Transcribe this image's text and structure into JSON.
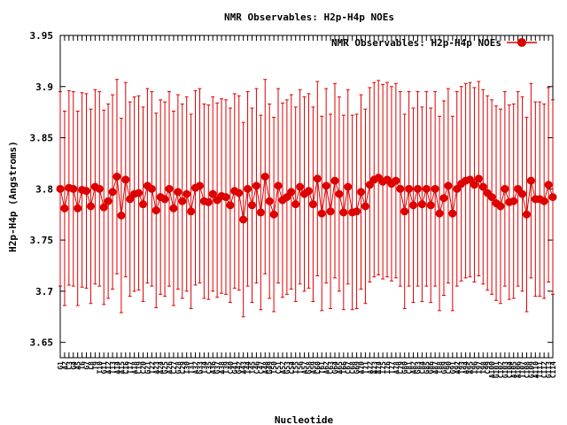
{
  "chart_data": {
    "type": "line",
    "title": "NMR Observables: H2p-H4p NOEs",
    "xlabel": "Nucleotide",
    "ylabel": "H2p-H4p (Angstroms)",
    "ylim": [
      3.635,
      3.95
    ],
    "yticks": [
      "3.65",
      "3.7",
      "3.75",
      "3.8",
      "3.85",
      "3.9",
      "3.95"
    ],
    "ytick_values": [
      3.65,
      3.7,
      3.75,
      3.8,
      3.85,
      3.9,
      3.95
    ],
    "grid": false,
    "legend_position": "top-right",
    "series": [
      {
        "name": "NMR Observables: H2p-H4p NOEs",
        "color": "#dd0000",
        "marker": "circle",
        "y": [
          3.8,
          3.781,
          3.801,
          3.8,
          3.781,
          3.799,
          3.798,
          3.783,
          3.802,
          3.8,
          3.782,
          3.788,
          3.797,
          3.812,
          3.774,
          3.809,
          3.79,
          3.795,
          3.796,
          3.785,
          3.803,
          3.8,
          3.779,
          3.792,
          3.79,
          3.8,
          3.781,
          3.797,
          3.788,
          3.795,
          3.778,
          3.801,
          3.803,
          3.788,
          3.787,
          3.795,
          3.789,
          3.793,
          3.792,
          3.784,
          3.798,
          3.796,
          3.77,
          3.8,
          3.784,
          3.803,
          3.777,
          3.812,
          3.788,
          3.775,
          3.803,
          3.789,
          3.792,
          3.797,
          3.785,
          3.802,
          3.795,
          3.798,
          3.785,
          3.81,
          3.776,
          3.803,
          3.778,
          3.808,
          3.795,
          3.777,
          3.802,
          3.777,
          3.778,
          3.797,
          3.783,
          3.804,
          3.809,
          3.811,
          3.807,
          3.809,
          3.805,
          3.808,
          3.8,
          3.778,
          3.8,
          3.784,
          3.8,
          3.785,
          3.8,
          3.784,
          3.8,
          3.776,
          3.791,
          3.803,
          3.776,
          3.8,
          3.805,
          3.808,
          3.809,
          3.804,
          3.81,
          3.802,
          3.796,
          3.792,
          3.786,
          3.783,
          3.8,
          3.787,
          3.788,
          3.8,
          3.795,
          3.775,
          3.808,
          3.79,
          3.79,
          3.788,
          3.804,
          3.792
        ],
        "err": [
          0.095,
          0.095,
          0.095,
          0.095,
          0.095,
          0.095,
          0.095,
          0.095,
          0.095,
          0.095,
          0.095,
          0.095,
          0.095,
          0.095,
          0.095,
          0.095,
          0.095,
          0.095,
          0.095,
          0.095,
          0.095,
          0.095,
          0.095,
          0.095,
          0.095,
          0.095,
          0.095,
          0.095,
          0.095,
          0.095,
          0.095,
          0.095,
          0.095,
          0.095,
          0.095,
          0.095,
          0.095,
          0.095,
          0.095,
          0.095,
          0.095,
          0.095,
          0.095,
          0.095,
          0.095,
          0.095,
          0.095,
          0.095,
          0.095,
          0.095,
          0.095,
          0.095,
          0.095,
          0.095,
          0.095,
          0.095,
          0.095,
          0.095,
          0.095,
          0.095,
          0.095,
          0.095,
          0.095,
          0.095,
          0.095,
          0.095,
          0.095,
          0.095,
          0.095,
          0.095,
          0.095,
          0.095,
          0.095,
          0.095,
          0.095,
          0.095,
          0.095,
          0.095,
          0.095,
          0.095,
          0.095,
          0.095,
          0.095,
          0.095,
          0.095,
          0.095,
          0.095,
          0.095,
          0.095,
          0.095,
          0.095,
          0.095,
          0.095,
          0.095,
          0.095,
          0.095,
          0.095,
          0.095,
          0.095,
          0.095,
          0.095,
          0.095,
          0.095,
          0.095,
          0.095,
          0.095,
          0.095,
          0.095,
          0.095,
          0.095,
          0.095,
          0.095,
          0.095,
          0.095
        ]
      }
    ],
    "categories": [
      "G1",
      "A2",
      "C3",
      "G4",
      "A5",
      "T6",
      "G7",
      "C8",
      "T9",
      "T10",
      "G11",
      "A12",
      "T13",
      "A14",
      "A15",
      "C16",
      "T17",
      "A18",
      "C19",
      "C20",
      "G21",
      "T22",
      "A23",
      "A24",
      "G25",
      "A26",
      "C27",
      "G28",
      "C29",
      "T30",
      "T31",
      "A32",
      "G33",
      "T34",
      "C35",
      "A36",
      "G37",
      "A38",
      "T39",
      "C40",
      "G41",
      "G42",
      "A43",
      "T44",
      "T45",
      "C46",
      "C47",
      "A48",
      "G49",
      "T50",
      "C51",
      "A52",
      "G53",
      "C54",
      "T55",
      "T56",
      "A57",
      "G58",
      "A59",
      "C60",
      "T61",
      "A62",
      "C63",
      "G64",
      "A65",
      "T66",
      "C67",
      "C68",
      "G69",
      "A70",
      "T71",
      "A72",
      "A73",
      "A74",
      "T75",
      "T76",
      "T77",
      "A78",
      "C79",
      "G80",
      "C81",
      "A82",
      "G83",
      "C84",
      "G85",
      "G86",
      "A87",
      "T88",
      "G89",
      "C90",
      "G91",
      "A92",
      "T93",
      "A94",
      "A95",
      "T96",
      "T97",
      "T98",
      "C99",
      "A100",
      "G101",
      "C102",
      "G103",
      "C104",
      "A105",
      "A106",
      "T107",
      "C108",
      "G109",
      "A110",
      "T111",
      "C112",
      "G113",
      "C114"
    ]
  }
}
